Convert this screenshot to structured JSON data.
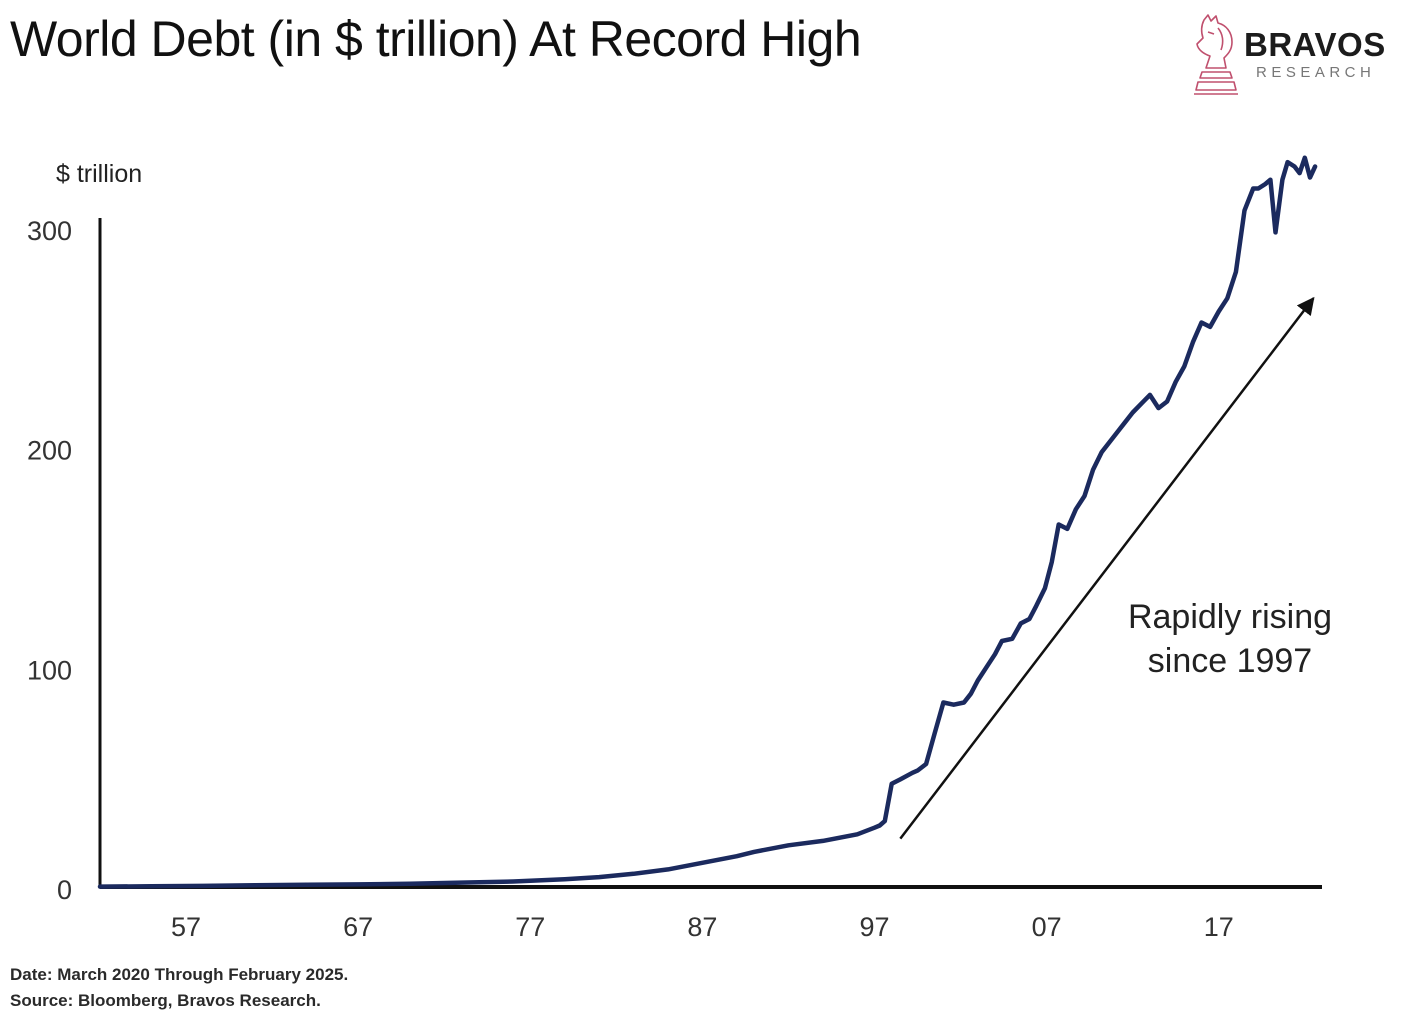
{
  "title": "World Debt (in $ trillion) At Record High",
  "logo": {
    "name": "BRAVOS",
    "subtitle": "RESEARCH",
    "icon": "knight-chess-piece-icon",
    "color": "#c0506e"
  },
  "footer": {
    "date_note": "Date: March 2020 Through February 2025.",
    "source_note": "Source: Bloomberg, Bravos Research."
  },
  "chart_data": {
    "type": "line",
    "title": "World Debt (in $ trillion) At Record High",
    "ylabel": "$ trillion",
    "xlabel": "",
    "xlim": [
      1952,
      2023
    ],
    "ylim": [
      0,
      300
    ],
    "x_tick_values": [
      1957,
      1967,
      1977,
      1987,
      1997,
      2007,
      2017
    ],
    "x_tick_labels": [
      "57",
      "67",
      "77",
      "87",
      "97",
      "07",
      "17"
    ],
    "y_tick_values": [
      0,
      100,
      200,
      300
    ],
    "y_tick_labels": [
      "0",
      "100",
      "200",
      "300"
    ],
    "grid": false,
    "line_color": "#1b2a5e",
    "series": [
      {
        "x": [
          1952,
          1955,
          1958,
          1961,
          1964,
          1967,
          1970,
          1973,
          1976,
          1979,
          1981,
          1983,
          1985,
          1987,
          1989,
          1990,
          1992,
          1994,
          1996,
          1997,
          1997.3,
          1997.6,
          1998,
          1998.5,
          1999.2,
          1999.5,
          2000,
          2000.5,
          2001,
          2001.6,
          2002.2,
          2002.6,
          2003,
          2003.5,
          2004,
          2004.4,
          2005,
          2005.5,
          2006,
          2006.4,
          2006.9,
          2007.3,
          2007.7,
          2008.2,
          2008.7,
          2009.2,
          2009.7,
          2010.2,
          2010.7,
          2011.2,
          2011.6,
          2012,
          2012.5,
          2013,
          2013.5,
          2014,
          2014.5,
          2015,
          2015.5,
          2016,
          2016.5,
          2017,
          2017.5,
          2018,
          2018.5,
          2019,
          2019.3,
          2019.7,
          2020,
          2020.3,
          2020.7,
          2021,
          2021.4,
          2021.7,
          2022,
          2022.3,
          2022.6
        ],
        "values": [
          0.2,
          0.3,
          0.5,
          0.8,
          1.0,
          1.2,
          1.5,
          2.0,
          2.5,
          3.5,
          4.5,
          6,
          8,
          11,
          14,
          16,
          19,
          21,
          24,
          27,
          28,
          30,
          47,
          49,
          52,
          53,
          56,
          70,
          84,
          83,
          84,
          88,
          94,
          100,
          106,
          112,
          113,
          120,
          122,
          128,
          136,
          148,
          165,
          163,
          172,
          178,
          190,
          198,
          203,
          208,
          212,
          216,
          220,
          224,
          218,
          221,
          230,
          237,
          248,
          257,
          255,
          262,
          268,
          280,
          308,
          318,
          318,
          320,
          322,
          298,
          322,
          330,
          328,
          325,
          332,
          323,
          328
        ]
      }
    ],
    "annotation": {
      "text_lines": [
        "Rapidly rising",
        "since 1997"
      ],
      "arrow_from": [
        1998.5,
        22
      ],
      "arrow_to": [
        2022.5,
        268
      ]
    }
  }
}
